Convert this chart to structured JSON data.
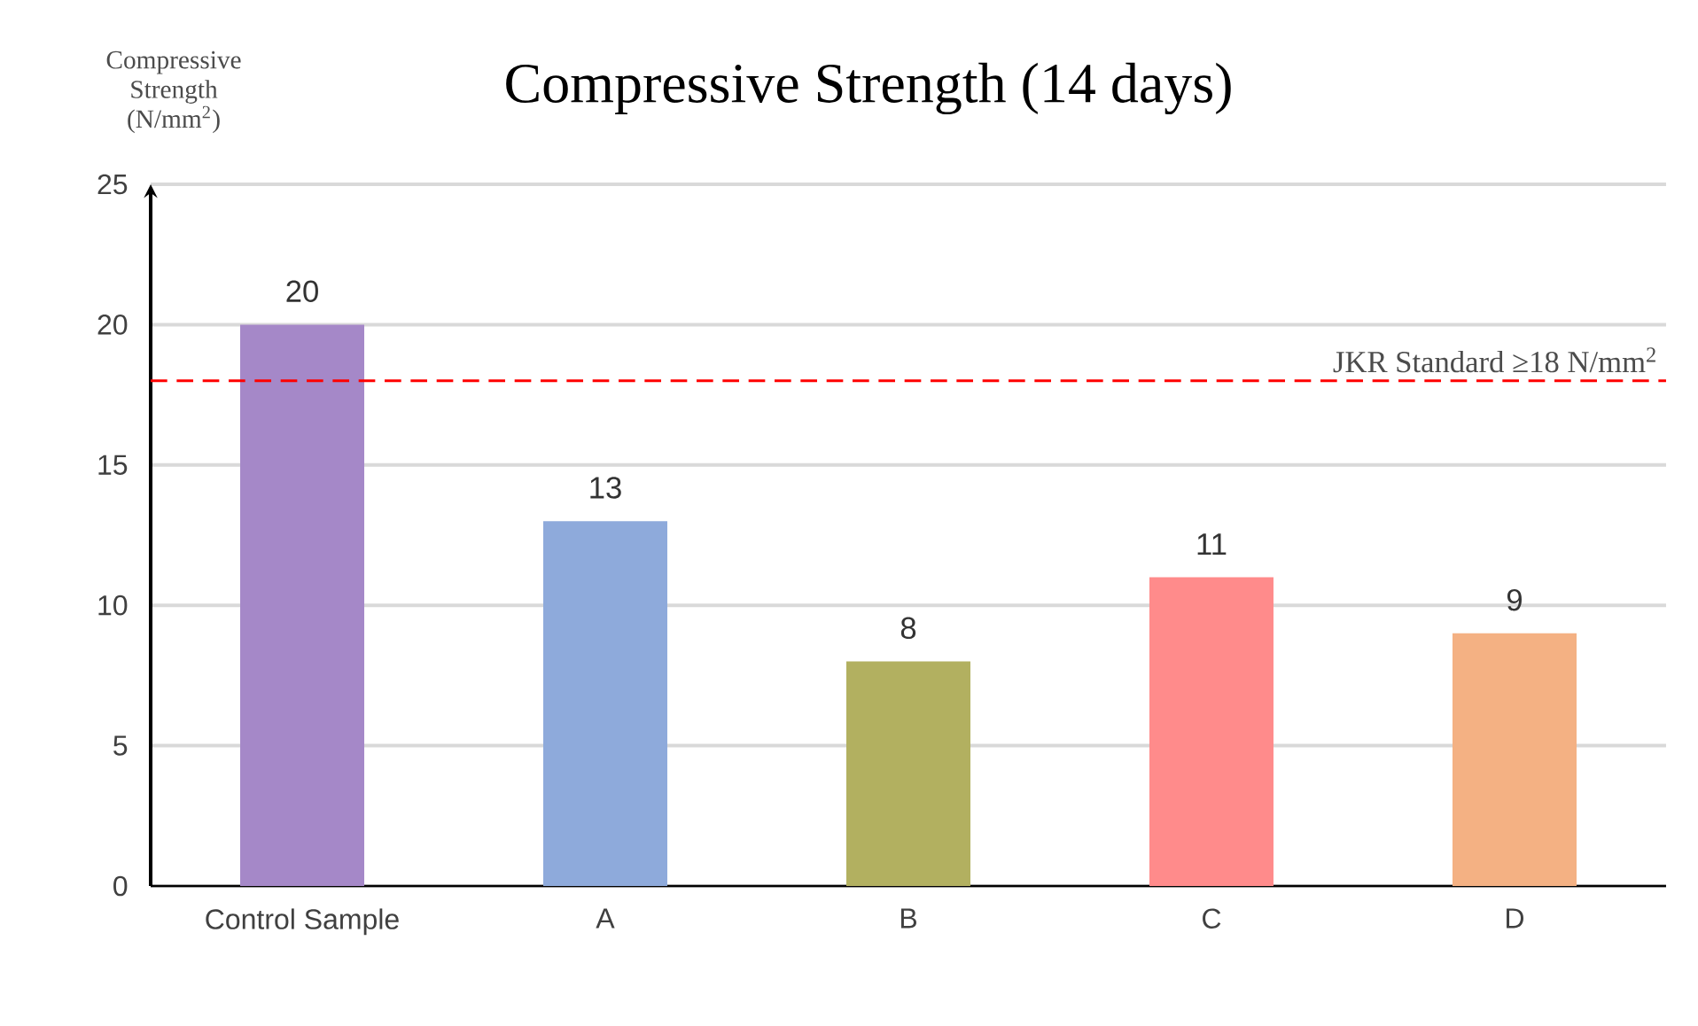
{
  "chart_data": {
    "type": "bar",
    "title": "Compressive Strength (14 days)",
    "ylabel": "Compressive Strength (N/mm$^{2}$)",
    "categories": [
      "Control Sample",
      "A",
      "B",
      "C",
      "D"
    ],
    "values": [
      20,
      13,
      8,
      11,
      9
    ],
    "colors": [
      "#a588c8",
      "#8eaadb",
      "#b2b060",
      "#ff8b8b",
      "#f4b183"
    ],
    "ylim": [
      0,
      25
    ],
    "yticks": [
      0,
      5,
      10,
      15,
      20,
      25
    ],
    "grid": "y",
    "data_labels": true,
    "ref_lines": [
      {
        "axis": "y",
        "value": 18,
        "label": "JKR Standard ≥18 N/mm$^{2}$",
        "color": "#ff0000",
        "line_style": "dashed"
      }
    ]
  }
}
